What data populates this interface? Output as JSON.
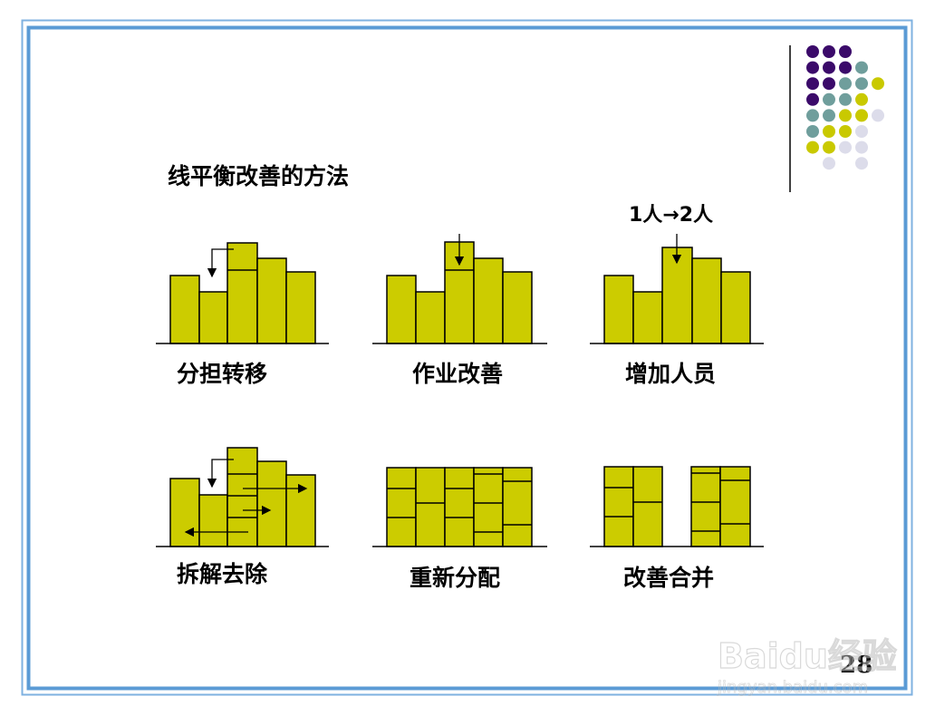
{
  "slide": {
    "title": "线平衡改善的方法",
    "page_number": "28",
    "border_color": "#5b9bd5",
    "bar_color": "#cccc00"
  },
  "methods": [
    {
      "label": "分担转移"
    },
    {
      "label": "作业改善"
    },
    {
      "label": "增加人员",
      "annotation": "1人→2人"
    },
    {
      "label": "拆解去除"
    },
    {
      "label": "重新分配"
    },
    {
      "label": "改善合并"
    }
  ],
  "decoration": {
    "dot_colors": {
      "P": "#3b0a6a",
      "T": "#6f9e9c",
      "Y": "#c9c900",
      "L": "#dcdcea"
    },
    "dot_grid": [
      "PPP",
      "PPPT",
      "PPTTY",
      "PTTY",
      "TTYYL",
      "TYYL",
      "YYLL",
      "_L_L"
    ]
  },
  "watermark": {
    "brand": "Baidu经验",
    "url": "jingyan.baidu.com"
  }
}
